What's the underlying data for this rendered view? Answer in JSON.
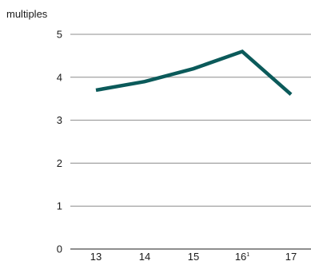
{
  "chart_data": {
    "type": "line",
    "ylabel": "multiples",
    "categories": [
      "13",
      "14",
      "15",
      "16",
      "17"
    ],
    "category_superscripts": [
      "",
      "",
      "",
      "1",
      ""
    ],
    "series": [
      {
        "values": [
          3.7,
          3.9,
          4.2,
          4.6,
          3.6
        ],
        "color": "#0b5a5a"
      }
    ],
    "ylim": [
      0,
      5
    ],
    "yticks": [
      0,
      1,
      2,
      3,
      4,
      5
    ],
    "grid": true
  }
}
